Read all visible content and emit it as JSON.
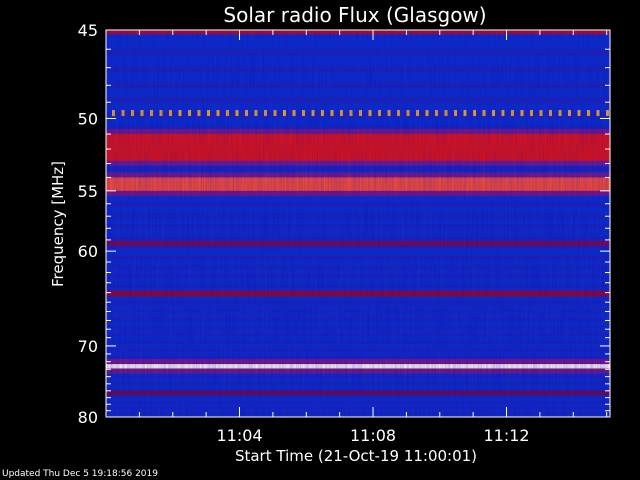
{
  "chart_data": {
    "type": "heatmap",
    "title": "Solar radio Flux (Glasgow)",
    "xlabel": "Start Time (21-Oct-19 11:00:01)",
    "ylabel": "Frequency [MHz]",
    "x_ticks": [
      "11:04",
      "11:08",
      "11:12"
    ],
    "x_tick_minutes": [
      4,
      8,
      12
    ],
    "x_range_minutes": [
      0,
      15.1
    ],
    "y_ticks": [
      45,
      50,
      55,
      60,
      70,
      80
    ],
    "y_scale": "reciprocal",
    "ylim": [
      45,
      80
    ],
    "bands_mhz": [
      {
        "center": 45.1,
        "width": 0.25,
        "color": "#b0102a",
        "intensity": "high"
      },
      {
        "center": 49.6,
        "width": 0.25,
        "color": "#ffb020",
        "intensity": "dotted"
      },
      {
        "center": 51.9,
        "width": 1.8,
        "color": "#e8160c",
        "intensity": "very high"
      },
      {
        "center": 54.5,
        "width": 1.0,
        "color": "#ff5030",
        "intensity": "very high"
      },
      {
        "center": 59.3,
        "width": 0.4,
        "color": "#8a0a3a",
        "intensity": "medium"
      },
      {
        "center": 64.1,
        "width": 0.6,
        "color": "#9a0a2a",
        "intensity": "medium"
      },
      {
        "center": 72.6,
        "width": 0.6,
        "color": "#ffe8a0",
        "intensity": "saturated"
      },
      {
        "center": 76.3,
        "width": 0.6,
        "color": "#7a0a3a",
        "intensity": "medium"
      }
    ],
    "colors": {
      "background": "#1030c8",
      "dark": "#100850",
      "mid": "#3020a0"
    }
  },
  "footer": "Updated Thu Dec  5 19:18:56 2019"
}
